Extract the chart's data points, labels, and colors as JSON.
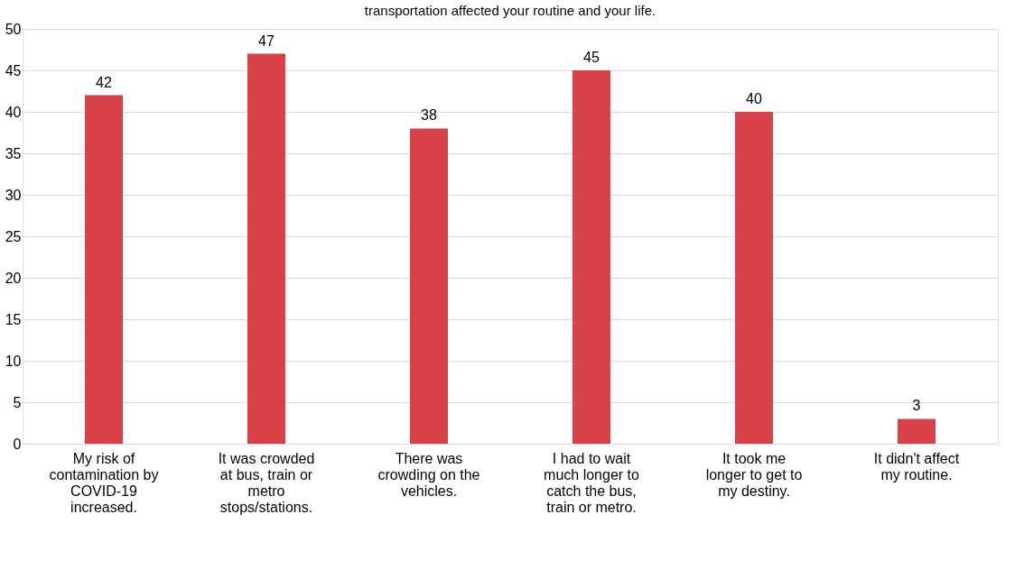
{
  "chart_data": {
    "type": "bar",
    "title": "transportation affected your routine and your life.",
    "categories": [
      "My risk of contamination by COVID-19 increased.",
      "It was crowded at bus, train or metro stops/stations.",
      "There was crowding on the vehicles.",
      "I had to wait much longer to catch the bus, train or metro.",
      "It took me longer to get to my destiny.",
      "It didn't affect my routine."
    ],
    "values": [
      42,
      47,
      38,
      45,
      40,
      3
    ],
    "color": "#d94148",
    "ylim": [
      0,
      50
    ],
    "yticks": [
      0,
      5,
      10,
      15,
      20,
      25,
      30,
      35,
      40,
      45,
      50
    ],
    "grid": "y",
    "data_labels": true
  }
}
